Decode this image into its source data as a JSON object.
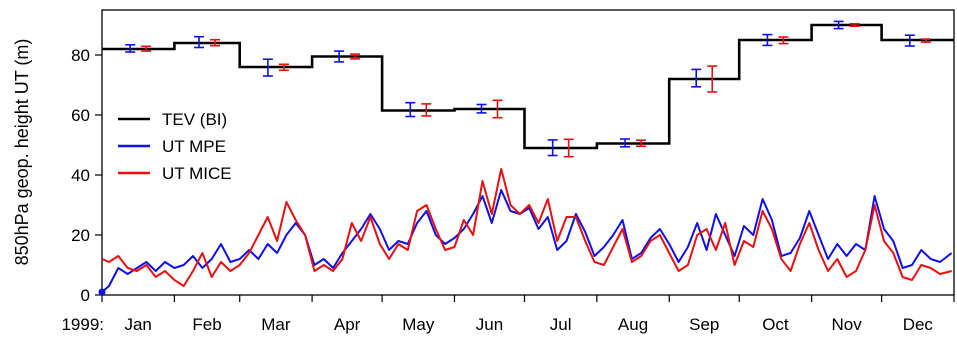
{
  "chart_data": {
    "type": "line",
    "ylabel": "850hPa geop. height UT (m)",
    "year_label": "1999:",
    "ylim": [
      0,
      95
    ],
    "y_ticks": [
      0,
      20,
      40,
      60,
      80
    ],
    "x_unit": "day of year",
    "xlim": [
      1,
      365
    ],
    "month_labels": [
      "Jan",
      "Feb",
      "Mar",
      "Apr",
      "May",
      "Jun",
      "Jul",
      "Aug",
      "Sep",
      "Oct",
      "Nov",
      "Dec"
    ],
    "month_start_days": [
      1,
      32,
      60,
      91,
      121,
      152,
      182,
      213,
      244,
      274,
      305,
      335,
      366
    ],
    "legend_position": "middle-left",
    "series": [
      {
        "name": "TEV (BI)",
        "color": "#000000",
        "kind": "monthly-step",
        "values": [
          82,
          84,
          76,
          79.5,
          61.5,
          62,
          49,
          50.5,
          72,
          85,
          90,
          85
        ]
      },
      {
        "name": "UT MPE",
        "color": "#1010e8",
        "kind": "daily",
        "anchors": [
          [
            1,
            1
          ],
          [
            4,
            3
          ],
          [
            8,
            9
          ],
          [
            12,
            7
          ],
          [
            16,
            9
          ],
          [
            20,
            11
          ],
          [
            24,
            8
          ],
          [
            28,
            11
          ],
          [
            32,
            9
          ],
          [
            36,
            10
          ],
          [
            40,
            13
          ],
          [
            44,
            9
          ],
          [
            48,
            12
          ],
          [
            52,
            17
          ],
          [
            56,
            11
          ],
          [
            60,
            12
          ],
          [
            64,
            15
          ],
          [
            68,
            12
          ],
          [
            72,
            17
          ],
          [
            76,
            14
          ],
          [
            80,
            20
          ],
          [
            84,
            24
          ],
          [
            88,
            20
          ],
          [
            92,
            10
          ],
          [
            96,
            12
          ],
          [
            100,
            9
          ],
          [
            104,
            14
          ],
          [
            108,
            18
          ],
          [
            112,
            22
          ],
          [
            116,
            27
          ],
          [
            120,
            22
          ],
          [
            124,
            15
          ],
          [
            128,
            18
          ],
          [
            132,
            17
          ],
          [
            136,
            24
          ],
          [
            140,
            28
          ],
          [
            144,
            20
          ],
          [
            148,
            17
          ],
          [
            152,
            19
          ],
          [
            156,
            22
          ],
          [
            160,
            27
          ],
          [
            164,
            33
          ],
          [
            168,
            24
          ],
          [
            172,
            35
          ],
          [
            176,
            28
          ],
          [
            180,
            27
          ],
          [
            184,
            29
          ],
          [
            188,
            22
          ],
          [
            192,
            26
          ],
          [
            196,
            15
          ],
          [
            200,
            18
          ],
          [
            204,
            27
          ],
          [
            208,
            21
          ],
          [
            212,
            13
          ],
          [
            216,
            16
          ],
          [
            220,
            20
          ],
          [
            224,
            25
          ],
          [
            228,
            12
          ],
          [
            232,
            14
          ],
          [
            236,
            19
          ],
          [
            240,
            22
          ],
          [
            244,
            17
          ],
          [
            248,
            11
          ],
          [
            252,
            16
          ],
          [
            256,
            24
          ],
          [
            260,
            15
          ],
          [
            264,
            27
          ],
          [
            268,
            20
          ],
          [
            272,
            13
          ],
          [
            276,
            23
          ],
          [
            280,
            20
          ],
          [
            284,
            32
          ],
          [
            288,
            25
          ],
          [
            292,
            13
          ],
          [
            296,
            14
          ],
          [
            300,
            19
          ],
          [
            304,
            28
          ],
          [
            308,
            20
          ],
          [
            312,
            12
          ],
          [
            316,
            17
          ],
          [
            320,
            13
          ],
          [
            324,
            17
          ],
          [
            328,
            15
          ],
          [
            332,
            33
          ],
          [
            336,
            22
          ],
          [
            340,
            18
          ],
          [
            344,
            9
          ],
          [
            348,
            10
          ],
          [
            352,
            15
          ],
          [
            356,
            12
          ],
          [
            360,
            11
          ],
          [
            365,
            14
          ]
        ]
      },
      {
        "name": "UT MICE",
        "color": "#e81010",
        "kind": "daily",
        "anchors": [
          [
            1,
            12
          ],
          [
            4,
            11
          ],
          [
            8,
            13
          ],
          [
            12,
            9
          ],
          [
            16,
            8
          ],
          [
            20,
            10
          ],
          [
            24,
            6
          ],
          [
            28,
            8
          ],
          [
            32,
            5
          ],
          [
            36,
            3
          ],
          [
            40,
            8
          ],
          [
            44,
            14
          ],
          [
            48,
            6
          ],
          [
            52,
            11
          ],
          [
            56,
            8
          ],
          [
            60,
            10
          ],
          [
            64,
            14
          ],
          [
            68,
            20
          ],
          [
            72,
            26
          ],
          [
            76,
            18
          ],
          [
            80,
            31
          ],
          [
            84,
            25
          ],
          [
            88,
            20
          ],
          [
            92,
            8
          ],
          [
            96,
            10
          ],
          [
            100,
            8
          ],
          [
            104,
            12
          ],
          [
            108,
            24
          ],
          [
            112,
            18
          ],
          [
            116,
            26
          ],
          [
            120,
            17
          ],
          [
            124,
            12
          ],
          [
            128,
            17
          ],
          [
            132,
            15
          ],
          [
            136,
            28
          ],
          [
            140,
            30
          ],
          [
            144,
            22
          ],
          [
            148,
            15
          ],
          [
            152,
            16
          ],
          [
            156,
            25
          ],
          [
            160,
            20
          ],
          [
            164,
            38
          ],
          [
            168,
            27
          ],
          [
            172,
            42
          ],
          [
            176,
            30
          ],
          [
            180,
            27
          ],
          [
            184,
            30
          ],
          [
            188,
            24
          ],
          [
            192,
            32
          ],
          [
            196,
            18
          ],
          [
            200,
            26
          ],
          [
            204,
            26
          ],
          [
            208,
            18
          ],
          [
            212,
            11
          ],
          [
            216,
            10
          ],
          [
            220,
            16
          ],
          [
            224,
            22
          ],
          [
            228,
            11
          ],
          [
            232,
            13
          ],
          [
            236,
            18
          ],
          [
            240,
            20
          ],
          [
            244,
            14
          ],
          [
            248,
            8
          ],
          [
            252,
            10
          ],
          [
            256,
            20
          ],
          [
            260,
            22
          ],
          [
            264,
            15
          ],
          [
            268,
            24
          ],
          [
            272,
            10
          ],
          [
            276,
            18
          ],
          [
            280,
            16
          ],
          [
            284,
            28
          ],
          [
            288,
            22
          ],
          [
            292,
            12
          ],
          [
            296,
            8
          ],
          [
            300,
            17
          ],
          [
            304,
            24
          ],
          [
            308,
            15
          ],
          [
            312,
            8
          ],
          [
            316,
            12
          ],
          [
            320,
            6
          ],
          [
            324,
            8
          ],
          [
            328,
            15
          ],
          [
            332,
            30
          ],
          [
            336,
            18
          ],
          [
            340,
            14
          ],
          [
            344,
            6
          ],
          [
            348,
            5
          ],
          [
            352,
            10
          ],
          [
            356,
            9
          ],
          [
            360,
            7
          ],
          [
            365,
            8
          ]
        ]
      }
    ],
    "error_bars": {
      "UT MPE": {
        "center": [
          82.2,
          84.3,
          75.8,
          79.5,
          61.8,
          62.1,
          49.1,
          50.7,
          72.3,
          85.0,
          90.0,
          84.8
        ],
        "half_width": [
          1.2,
          1.8,
          2.8,
          1.8,
          2.3,
          1.4,
          2.6,
          1.3,
          2.9,
          1.8,
          1.2,
          1.8
        ]
      },
      "UT MICE": {
        "center": [
          82.1,
          84.1,
          75.9,
          79.5,
          61.7,
          62.0,
          49.0,
          50.6,
          72.0,
          84.9,
          90.0,
          84.8
        ],
        "half_width": [
          0.8,
          1.0,
          1.0,
          0.8,
          2.0,
          2.9,
          2.9,
          1.0,
          4.3,
          1.1,
          0.4,
          0.5
        ]
      }
    }
  }
}
